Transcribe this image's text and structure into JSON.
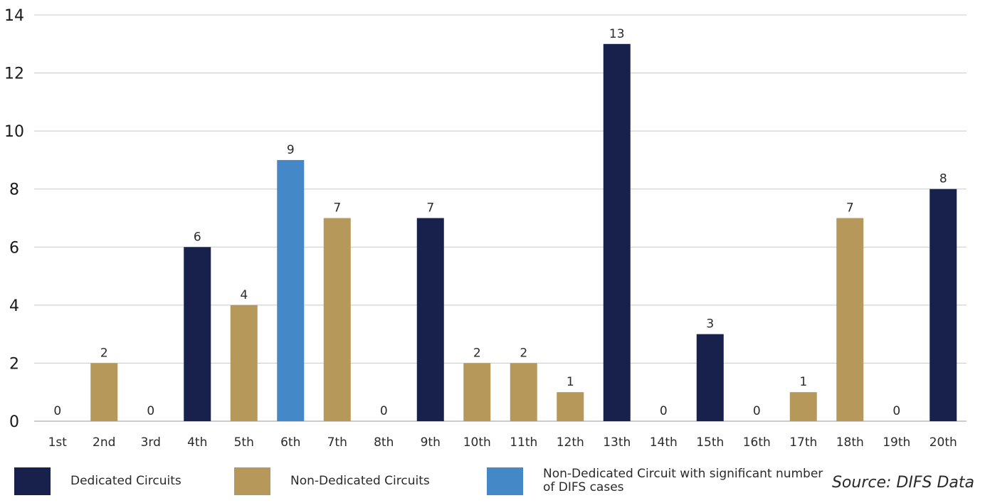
{
  "chart_data": {
    "type": "bar",
    "title": "",
    "xlabel": "",
    "ylabel": "",
    "ylim": [
      0,
      14
    ],
    "yticks": [
      0,
      2,
      4,
      6,
      8,
      10,
      12,
      14
    ],
    "grid": true,
    "legend_position": "bottom",
    "categories": [
      "1st",
      "2nd",
      "3rd",
      "4th",
      "5th",
      "6th",
      "7th",
      "8th",
      "9th",
      "10th",
      "11th",
      "12th",
      "13th",
      "14th",
      "15th",
      "16th",
      "17th",
      "18th",
      "19th",
      "20th"
    ],
    "values": [
      0,
      2,
      0,
      6,
      4,
      9,
      7,
      0,
      7,
      2,
      2,
      1,
      13,
      0,
      3,
      0,
      1,
      7,
      0,
      8
    ],
    "bar_groups": [
      -1,
      1,
      -1,
      0,
      1,
      2,
      1,
      -1,
      0,
      1,
      1,
      1,
      0,
      -1,
      0,
      -1,
      1,
      1,
      -1,
      0
    ],
    "series": [
      {
        "name": "Dedicated Circuits",
        "color": "#17214c"
      },
      {
        "name": "Non-Dedicated Circuits",
        "color": "#b5985a"
      },
      {
        "name": "Non-Dedicated Circuit with significant number of DIFS cases",
        "color": "#4588c8"
      }
    ],
    "source": "Source: DIFS Data"
  }
}
